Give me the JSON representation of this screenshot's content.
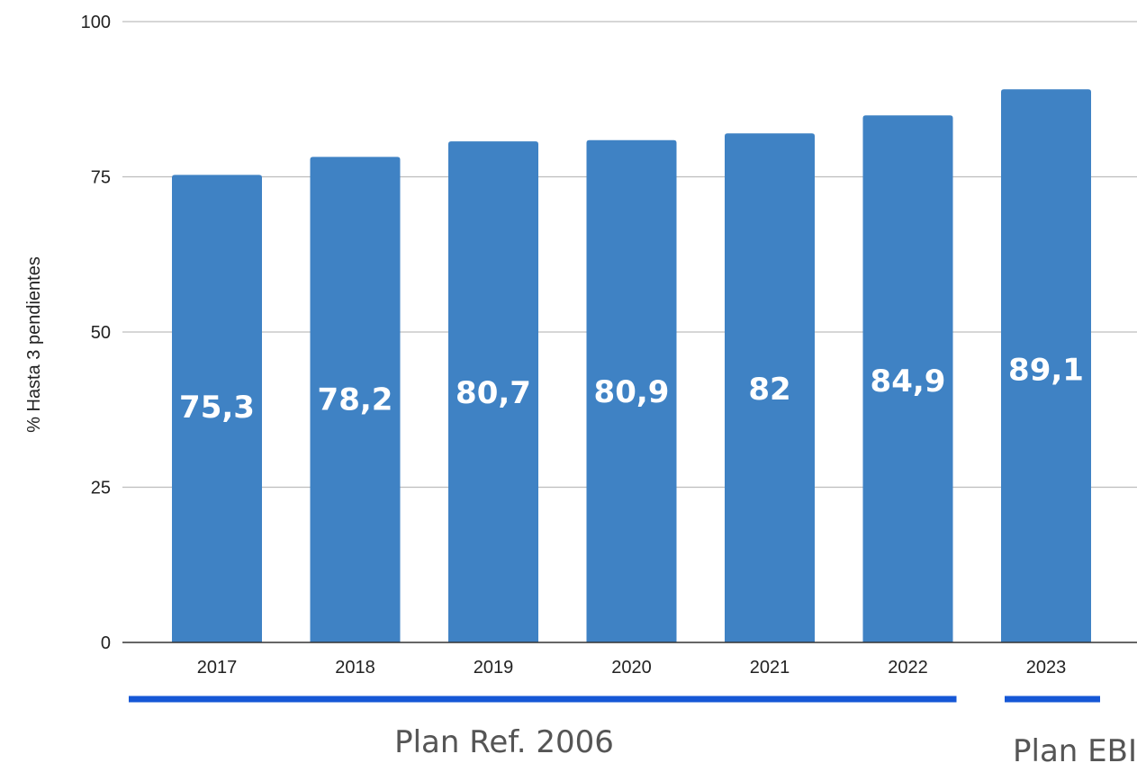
{
  "chart_data": {
    "type": "bar",
    "categories": [
      "2017",
      "2018",
      "2019",
      "2020",
      "2021",
      "2022",
      "2023"
    ],
    "values": [
      75.3,
      78.2,
      80.7,
      80.9,
      82,
      84.9,
      89.1
    ],
    "data_labels": [
      "75,3",
      "78,2",
      "80,7",
      "80,9",
      "82",
      "84,9",
      "89,1"
    ],
    "ylabel": "% Hasta 3 pendientes",
    "ylim": [
      0,
      100
    ],
    "yticks": [
      0,
      25,
      50,
      75,
      100
    ],
    "ytick_labels": [
      "0",
      "25",
      "50",
      "75",
      "100"
    ],
    "grid": true,
    "colors": {
      "bar": "#3f82c4",
      "grid": "#bdbdbd",
      "axis": "#333333",
      "group_line": "#1557d6"
    },
    "groups": [
      {
        "label": "Plan Ref. 2006",
        "from": "2017",
        "to": "2022"
      },
      {
        "label": "Plan EBI",
        "from": "2023",
        "to": "2023"
      }
    ]
  }
}
